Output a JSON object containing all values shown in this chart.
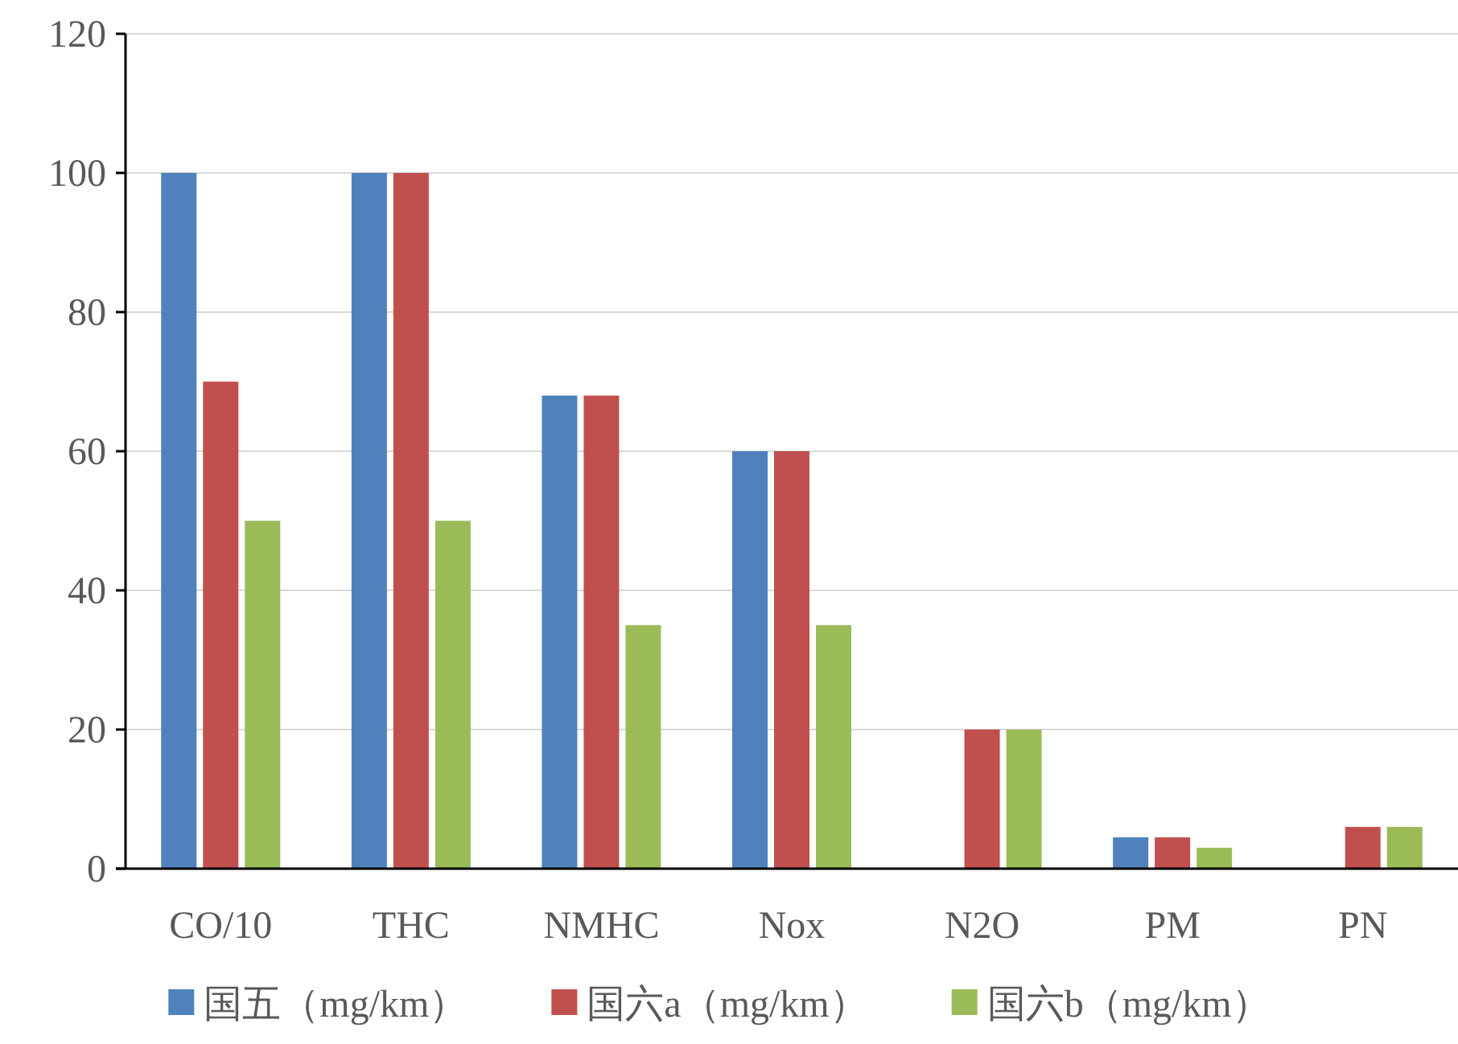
{
  "chart_data": {
    "type": "bar",
    "categories": [
      "CO/10",
      "THC",
      "NMHC",
      "Nox",
      "N2O",
      "PM",
      "PN"
    ],
    "series": [
      {
        "name": "国五（mg/km）",
        "color": "#4f81bd",
        "values": [
          100,
          100,
          68,
          60,
          null,
          4.5,
          null
        ]
      },
      {
        "name": "国六a（mg/km）",
        "color": "#c0504d",
        "values": [
          70,
          100,
          68,
          60,
          20,
          4.5,
          6
        ]
      },
      {
        "name": "国六b（mg/km）",
        "color": "#9bbb59",
        "values": [
          50,
          50,
          35,
          35,
          20,
          3,
          6
        ]
      }
    ],
    "ylim": [
      0,
      120
    ],
    "yticks": [
      0,
      20,
      40,
      60,
      80,
      100,
      120
    ],
    "grid": "y",
    "legend": "bottom"
  }
}
